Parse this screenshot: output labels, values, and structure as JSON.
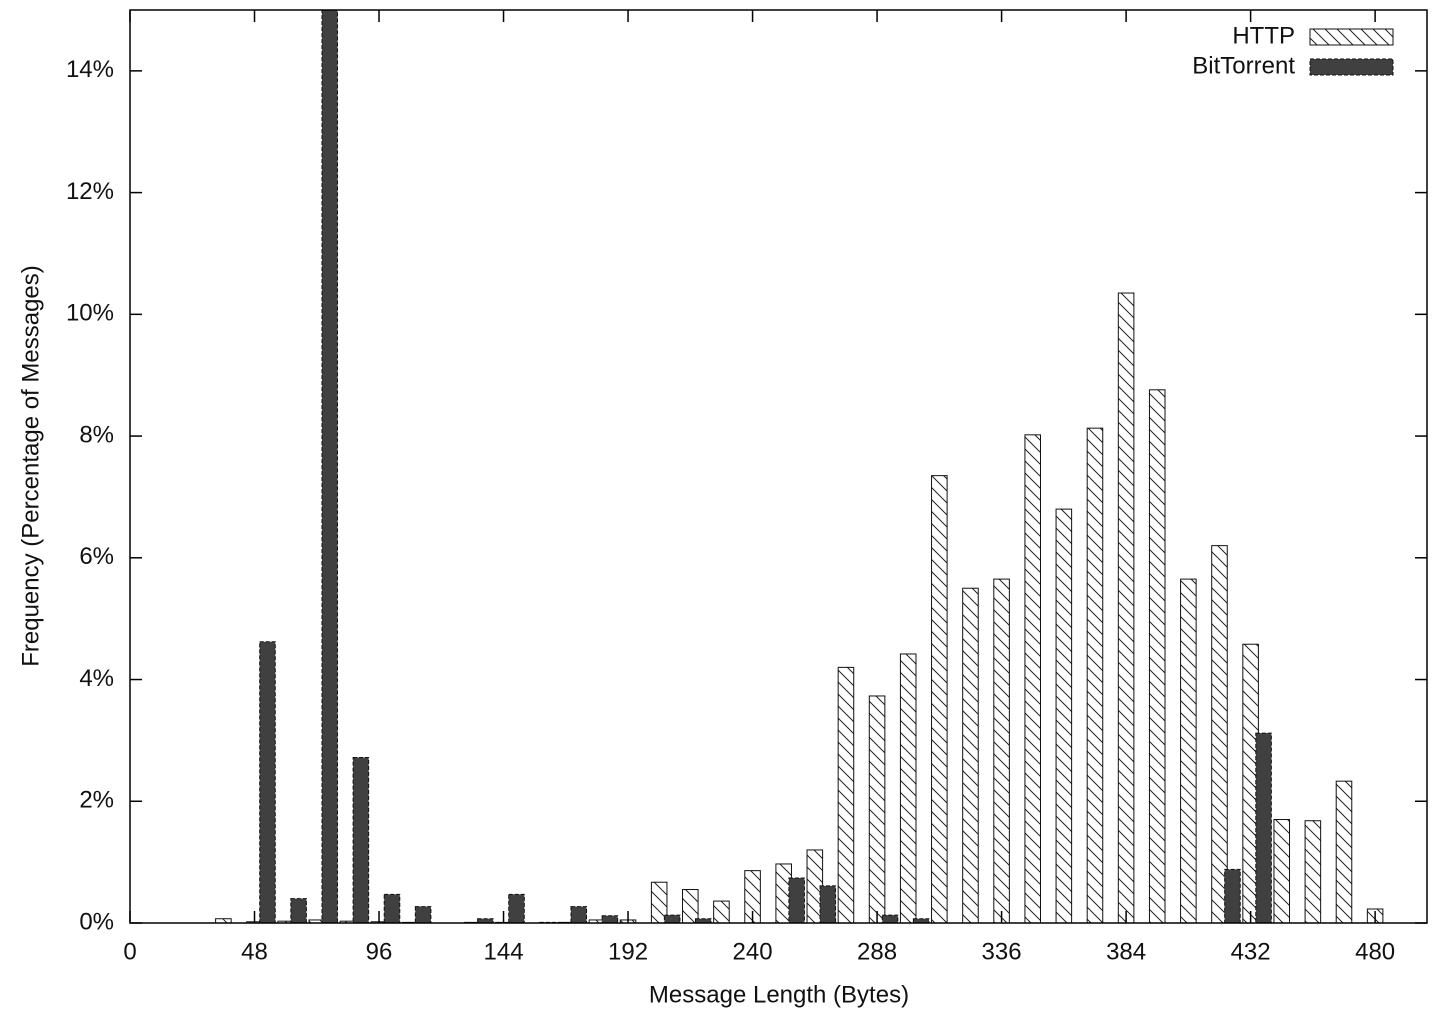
{
  "chart_data": {
    "type": "bar",
    "xlabel": "Message Length (Bytes)",
    "ylabel": "Frequency (Percentage of Messages)",
    "x": [
      36,
      48,
      60,
      72,
      84,
      96,
      108,
      120,
      132,
      144,
      156,
      168,
      180,
      192,
      204,
      216,
      228,
      240,
      252,
      264,
      276,
      288,
      300,
      312,
      324,
      336,
      348,
      360,
      372,
      384,
      396,
      408,
      420,
      432,
      444,
      456,
      468,
      480
    ],
    "series": [
      {
        "name": "HTTP",
        "color": "#ffffff",
        "pattern": "hatch",
        "values": [
          0.07,
          0.02,
          0.03,
          0.05,
          0.03,
          0.02,
          0.01,
          0,
          0.01,
          0.01,
          0,
          0.01,
          0.05,
          0.05,
          0.67,
          0.55,
          0.36,
          0.86,
          0.97,
          1.2,
          4.2,
          3.73,
          4.42,
          7.35,
          5.5,
          5.65,
          8.02,
          6.8,
          8.13,
          10.35,
          8.76,
          5.65,
          6.2,
          4.58,
          1.7,
          1.68,
          2.33,
          0.23
        ]
      },
      {
        "name": "BitTorrent",
        "color": "#404040",
        "pattern": "solid",
        "values": [
          0,
          4.62,
          0.4,
          15,
          2.72,
          0.47,
          0.27,
          0,
          0.07,
          0.47,
          0.01,
          0.27,
          0.12,
          0,
          0.13,
          0.07,
          0,
          0,
          0.74,
          0.61,
          0,
          0.13,
          0.07,
          0,
          0,
          0,
          0,
          0,
          0,
          0,
          0,
          0,
          0.88,
          3.12,
          0,
          0,
          0,
          0
        ]
      }
    ],
    "xlim": [
      0,
      500
    ],
    "xticks": [
      0,
      48,
      96,
      144,
      192,
      240,
      288,
      336,
      384,
      432,
      480
    ],
    "ylim": [
      0,
      15
    ],
    "yticks": [
      {
        "value": 0,
        "label": "0%"
      },
      {
        "value": 2,
        "label": "2%"
      },
      {
        "value": 4,
        "label": "4%"
      },
      {
        "value": 6,
        "label": "6%"
      },
      {
        "value": 8,
        "label": "8%"
      },
      {
        "value": 10,
        "label": "10%"
      },
      {
        "value": 12,
        "label": "12%"
      },
      {
        "value": 14,
        "label": "14%"
      }
    ],
    "legend": "top-right",
    "grid": false
  }
}
